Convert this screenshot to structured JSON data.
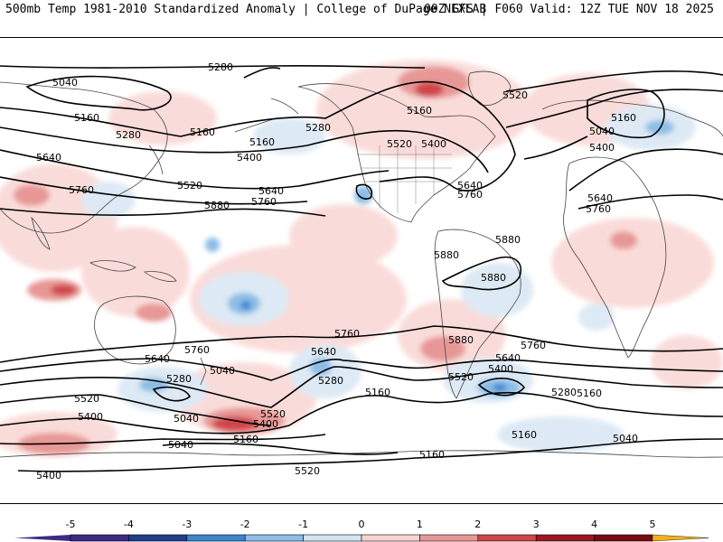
{
  "header": {
    "title": "500mb Temp 1981-2010 Standardized Anomaly | College of DuPage NEXLAB",
    "run_info": "00Z GFS | F060 Valid: 12Z TUE NOV 18 2025"
  },
  "contour_labels": [
    "5280",
    "5040",
    "5160",
    "5160",
    "5280",
    "5160",
    "5280",
    "5160",
    "5400",
    "5520",
    "5640",
    "5760",
    "5880",
    "5640",
    "5760",
    "5520",
    "5400",
    "5520",
    "5640",
    "5760",
    "5880",
    "5880",
    "5880",
    "5160",
    "5400",
    "5640",
    "5760",
    "5760",
    "5640",
    "5520",
    "5400",
    "5280",
    "5520",
    "5400",
    "5160",
    "5040",
    "5280",
    "5520",
    "5400",
    "5160",
    "5040",
    "5040",
    "5640",
    "5760",
    "5880",
    "5760",
    "5640",
    "5400",
    "5520",
    "5280",
    "5160",
    "5040",
    "5160",
    "5160",
    "5040"
  ],
  "colorbar": {
    "ticks": [
      "-5",
      "-4",
      "-3",
      "-2",
      "-1",
      "0",
      "1",
      "2",
      "3",
      "4",
      "5"
    ],
    "colors": [
      "#3e2a83",
      "#1f3f8c",
      "#3a86cf",
      "#8cbde6",
      "#d3e4f2",
      "#ffffff",
      "#f7d4d1",
      "#e79896",
      "#d0444a",
      "#a01525",
      "#f2b01c"
    ]
  }
}
